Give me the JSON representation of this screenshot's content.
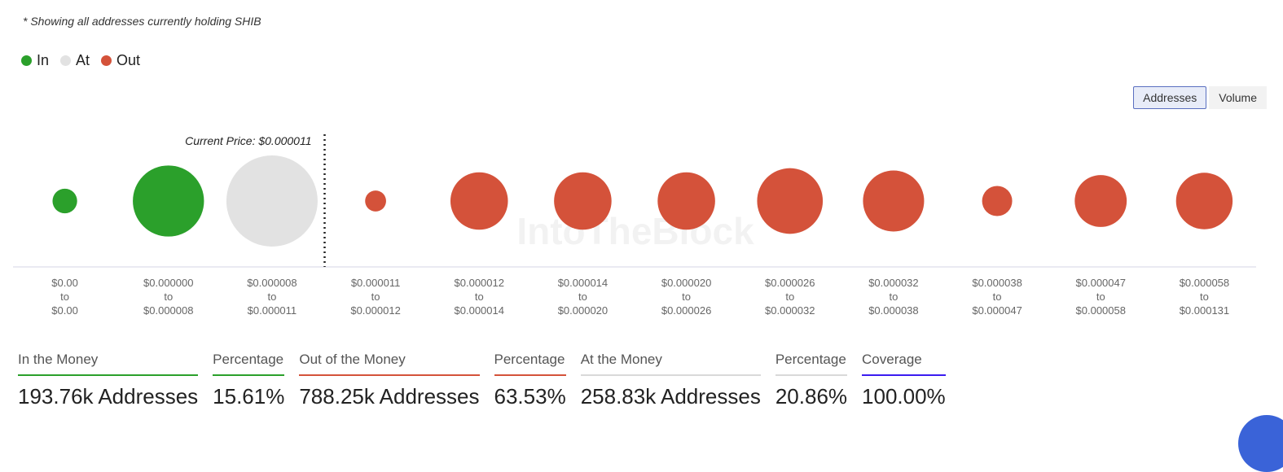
{
  "note": "* Showing all addresses currently holding SHIB",
  "legend": [
    {
      "label": "In",
      "color": "#2ba02b"
    },
    {
      "label": "At",
      "color": "#e2e2e2"
    },
    {
      "label": "Out",
      "color": "#d4523a"
    }
  ],
  "toggle": {
    "addresses": "Addresses",
    "volume": "Volume"
  },
  "watermark": "IntoTheBlock",
  "chart_data": {
    "type": "bubble",
    "current_price_label": "Current Price: $0.000011",
    "current_price_after_index": 2,
    "bubbles": [
      {
        "from": "$0.00",
        "to": "$0.00",
        "status": "In",
        "relative_size": 0.27
      },
      {
        "from": "$0.000000",
        "to": "$0.000008",
        "status": "In",
        "relative_size": 0.78
      },
      {
        "from": "$0.000008",
        "to": "$0.000011",
        "status": "At",
        "relative_size": 1.0
      },
      {
        "from": "$0.000011",
        "to": "$0.000012",
        "status": "Out",
        "relative_size": 0.23
      },
      {
        "from": "$0.000012",
        "to": "$0.000014",
        "status": "Out",
        "relative_size": 0.63
      },
      {
        "from": "$0.000014",
        "to": "$0.000020",
        "status": "Out",
        "relative_size": 0.63
      },
      {
        "from": "$0.000020",
        "to": "$0.000026",
        "status": "Out",
        "relative_size": 0.63
      },
      {
        "from": "$0.000026",
        "to": "$0.000032",
        "status": "Out",
        "relative_size": 0.72
      },
      {
        "from": "$0.000032",
        "to": "$0.000038",
        "status": "Out",
        "relative_size": 0.67
      },
      {
        "from": "$0.000038",
        "to": "$0.000047",
        "status": "Out",
        "relative_size": 0.33
      },
      {
        "from": "$0.000047",
        "to": "$0.000058",
        "status": "Out",
        "relative_size": 0.57
      },
      {
        "from": "$0.000058",
        "to": "$0.000131",
        "status": "Out",
        "relative_size": 0.62
      }
    ],
    "tick_to": "to"
  },
  "stats": [
    {
      "label": "In the Money",
      "value": "193.76k Addresses",
      "color": "#2ba02b"
    },
    {
      "label": "Percentage",
      "value": "15.61%",
      "color": "#2ba02b"
    },
    {
      "label": "Out of the Money",
      "value": "788.25k Addresses",
      "color": "#d4523a"
    },
    {
      "label": "Percentage",
      "value": "63.53%",
      "color": "#d4523a"
    },
    {
      "label": "At the Money",
      "value": "258.83k Addresses",
      "color": "#d9d9d9"
    },
    {
      "label": "Percentage",
      "value": "20.86%",
      "color": "#d9d9d9"
    },
    {
      "label": "Coverage",
      "value": "100.00%",
      "color": "#3b1cf0"
    }
  ]
}
